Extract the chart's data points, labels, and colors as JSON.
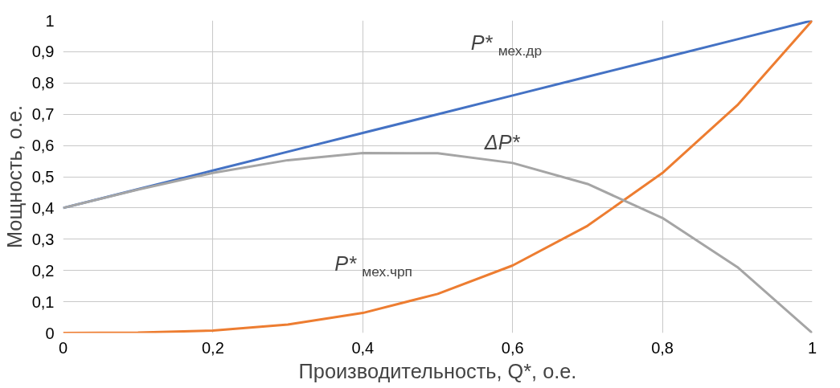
{
  "chart_data": {
    "type": "line",
    "xlabel": "Производительность, Q*, о.е.",
    "ylabel": "Мощность, о.е.",
    "x": [
      0,
      0.1,
      0.2,
      0.3,
      0.4,
      0.5,
      0.6,
      0.7,
      0.8,
      0.9,
      1
    ],
    "series": [
      {
        "name": "P*$_{мех.др}$",
        "color": "#4472c4",
        "values": [
          0.4,
          0.46,
          0.52,
          0.58,
          0.64,
          0.7,
          0.76,
          0.82,
          0.88,
          0.94,
          1
        ]
      },
      {
        "name": "P*$_{мех.чрп}$",
        "color": "#ed7d31",
        "values": [
          0,
          0.001,
          0.008,
          0.027,
          0.064,
          0.125,
          0.216,
          0.343,
          0.512,
          0.729,
          1
        ]
      },
      {
        "name": "ΔP*",
        "color": "#a5a5a5",
        "values": [
          0.4,
          0.459,
          0.512,
          0.553,
          0.576,
          0.575,
          0.544,
          0.477,
          0.368,
          0.211,
          0
        ]
      }
    ],
    "xlim": [
      0,
      1
    ],
    "ylim": [
      0,
      1
    ],
    "xticks": [
      0,
      {
        "value": 0.2,
        "label": "0,2"
      },
      {
        "value": 0.4,
        "label": "0,4"
      },
      {
        "value": 0.6,
        "label": "0,6"
      },
      {
        "value": 0.8,
        "label": "0,8"
      },
      1
    ],
    "yticks": [
      0,
      {
        "value": 0.1,
        "label": "0,1"
      },
      {
        "value": 0.2,
        "label": "0,2"
      },
      {
        "value": 0.3,
        "label": "0,3"
      },
      {
        "value": 0.4,
        "label": "0,4"
      },
      {
        "value": 0.5,
        "label": "0,5"
      },
      {
        "value": 0.6,
        "label": "0,6"
      },
      {
        "value": 0.7,
        "label": "0,7"
      },
      {
        "value": 0.8,
        "label": "0,8"
      },
      {
        "value": 0.9,
        "label": "0,9"
      },
      1
    ],
    "grid": true,
    "legend": false,
    "marker": "none",
    "line_style": "solid"
  }
}
